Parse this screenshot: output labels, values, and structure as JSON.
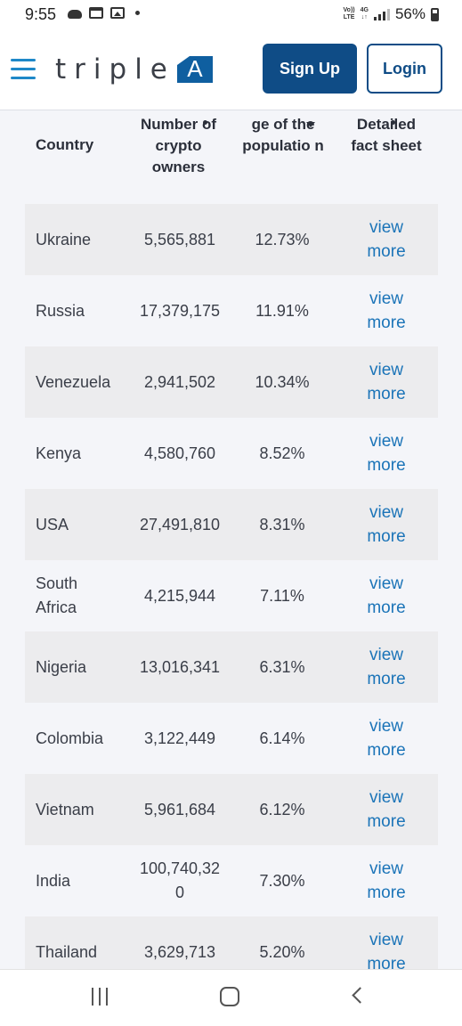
{
  "status_bar": {
    "time": "9:55",
    "network_top": "Vo))",
    "network_bottom": "LTE",
    "net_type": "4G",
    "battery": "56%"
  },
  "header": {
    "logo_text": "triple",
    "logo_letter": "A",
    "signup_label": "Sign Up",
    "login_label": "Login"
  },
  "table": {
    "headers": {
      "country": "Country",
      "owners": "Number of crypto owners",
      "pct": "ge of the populatio n",
      "sheet": "Detailed fact sheet"
    },
    "link_label": "view more",
    "rows": [
      {
        "country": "Ukraine",
        "owners": "5,565,881",
        "pct": "12.73%"
      },
      {
        "country": "Russia",
        "owners": "17,379,175",
        "pct": "11.91%"
      },
      {
        "country": "Venezuela",
        "owners": "2,941,502",
        "pct": "10.34%"
      },
      {
        "country": "Kenya",
        "owners": "4,580,760",
        "pct": "8.52%"
      },
      {
        "country": "USA",
        "owners": "27,491,810",
        "pct": "8.31%"
      },
      {
        "country": "South Africa",
        "owners": "4,215,944",
        "pct": "7.11%"
      },
      {
        "country": "Nigeria",
        "owners": "13,016,341",
        "pct": "6.31%"
      },
      {
        "country": "Colombia",
        "owners": "3,122,449",
        "pct": "6.14%"
      },
      {
        "country": "Vietnam",
        "owners": "5,961,684",
        "pct": "6.12%"
      },
      {
        "country": "India",
        "owners": "100,740,320",
        "pct": "7.30%"
      },
      {
        "country": "Thailand",
        "owners": "3,629,713",
        "pct": "5.20%"
      }
    ]
  }
}
